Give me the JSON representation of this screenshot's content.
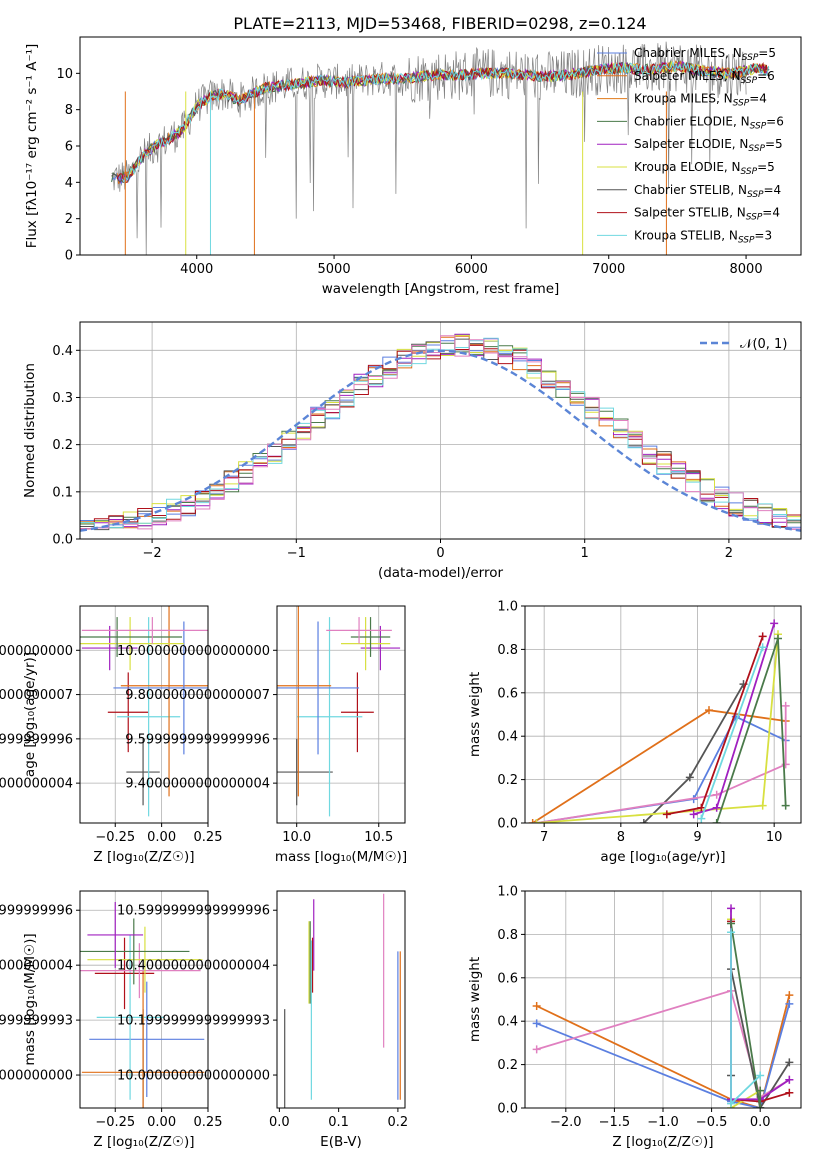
{
  "title": "PLATE=2113, MJD=53468, FIBERID=0298, z=0.124",
  "colors": {
    "Chabrier MILES": "#5b7fe0",
    "Salpeter MILES": "#e0701a",
    "Kroupa MILES": "#e07a1a",
    "Chabrier ELODIE": "#4a7a4a",
    "Salpeter ELODIE": "#a020c0",
    "Kroupa ELODIE": "#d8e040",
    "Chabrier STELIB": "#555555",
    "Salpeter STELIB": "#b0101a",
    "Kroupa STELIB": "#70d8e0",
    "pink": "#e080c0",
    "normal": "#5b85d6"
  },
  "chart_data": [
    {
      "id": "spectrum",
      "type": "line",
      "xlabel": "wavelength [Angstrom, rest frame]",
      "ylabel": "Flux [fλ10⁻¹⁷ erg cm⁻² s⁻¹ A⁻¹]",
      "xlim": [
        3150,
        8400
      ],
      "ylim": [
        0,
        12
      ],
      "xticks": [
        4000,
        5000,
        6000,
        7000,
        8000
      ],
      "yticks": [
        0,
        2,
        4,
        6,
        8,
        10
      ],
      "grid": false,
      "legend_position": "top-right",
      "legend": [
        {
          "label": "Chabrier MILES, N_SSP=5",
          "color": "#5b7fe0"
        },
        {
          "label": "Salpeter MILES, N_SSP=6",
          "color": "#e0701a"
        },
        {
          "label": "Kroupa MILES, N_SSP=4",
          "color": "#e07a1a"
        },
        {
          "label": "Chabrier ELODIE, N_SSP=6",
          "color": "#4a7a4a"
        },
        {
          "label": "Salpeter ELODIE, N_SSP=5",
          "color": "#a020c0"
        },
        {
          "label": "Kroupa ELODIE, N_SSP=5",
          "color": "#d8e040"
        },
        {
          "label": "Chabrier STELIB, N_SSP=4",
          "color": "#555555"
        },
        {
          "label": "Salpeter STELIB, N_SSP=4",
          "color": "#b0101a"
        },
        {
          "label": "Kroupa STELIB, N_SSP=3",
          "color": "#70d8e0"
        }
      ],
      "continuum": {
        "x": [
          3380,
          3500,
          3600,
          3700,
          3800,
          3900,
          4000,
          4100,
          4200,
          4300,
          4500,
          4700,
          4900,
          5100,
          5300,
          5500,
          5700,
          5900,
          6100,
          6300,
          6500,
          6700,
          6900,
          7100,
          7300,
          7500,
          7700,
          7900,
          8100,
          8170
        ],
        "y": [
          4.2,
          4.3,
          5.4,
          6.0,
          6.4,
          6.9,
          8.2,
          8.7,
          8.9,
          8.5,
          9.2,
          9.4,
          9.6,
          9.5,
          9.7,
          9.7,
          9.9,
          9.9,
          10.0,
          10.0,
          9.8,
          9.9,
          10.2,
          10.3,
          10.2,
          10.4,
          10.1,
          10.0,
          10.3,
          10.1
        ]
      }
    },
    {
      "id": "residuals",
      "type": "area",
      "xlabel": "(data-model)/error",
      "ylabel": "Normed distribution",
      "xlim": [
        -2.5,
        2.5
      ],
      "ylim": [
        0,
        0.46
      ],
      "xticks": [
        -2,
        -1,
        0,
        1,
        2
      ],
      "yticks": [
        0.0,
        0.1,
        0.2,
        0.3,
        0.4
      ],
      "grid": true,
      "legend_position": "top-right",
      "legend": [
        {
          "label": "𝒩(0, 1)",
          "color": "#5b85d6",
          "style": "dashed"
        }
      ],
      "bin_width": 0.1
    },
    {
      "id": "age_vs_Z",
      "type": "scatter",
      "xlabel": "Z [log₁₀(Z/Z☉)]",
      "ylabel": "age  [log₁₀(age/yr)]",
      "xlim": [
        -0.44,
        0.25
      ],
      "ylim": [
        9.22,
        10.2
      ],
      "xticks": [
        -0.25,
        0.0,
        0.25
      ],
      "yticks": [
        9.4,
        9.6,
        9.8,
        10.0
      ],
      "grid": true,
      "points": [
        {
          "color": "#555555",
          "x": -0.1,
          "xerr": 0.09,
          "y": 9.45,
          "yerr": 0.15
        },
        {
          "color": "#b0101a",
          "x": -0.18,
          "xerr": 0.11,
          "y": 9.72,
          "yerr": 0.18
        },
        {
          "color": "#70d8e0",
          "x": -0.07,
          "xerr": 0.17,
          "y": 9.7,
          "yerr": 0.45
        },
        {
          "color": "#e0701a",
          "x": 0.04,
          "xerr": 0.26,
          "y": 9.84,
          "yerr": 0.5
        },
        {
          "color": "#5b7fe0",
          "x": 0.12,
          "xerr": 0.38,
          "y": 9.83,
          "yerr": 0.3
        },
        {
          "color": "#a020c0",
          "x": -0.28,
          "xerr": 0.15,
          "y": 10.01,
          "yerr": 0.1
        },
        {
          "color": "#d8e040",
          "x": -0.17,
          "xerr": 0.29,
          "y": 10.03,
          "yerr": 0.12
        },
        {
          "color": "#4a7a4a",
          "x": -0.24,
          "xerr": 0.35,
          "y": 10.06,
          "yerr": 0.09
        },
        {
          "color": "#e080c0",
          "x": -0.05,
          "xerr": 0.38,
          "y": 10.09,
          "yerr": 0.06
        }
      ]
    },
    {
      "id": "age_vs_mass",
      "type": "scatter",
      "xlabel": "mass [log₁₀(M/M☉)]",
      "ylabel": "",
      "xlim": [
        9.88,
        10.66
      ],
      "ylim": [
        9.22,
        10.2
      ],
      "xticks": [
        10.0,
        10.5
      ],
      "yticks": [
        9.4,
        9.6,
        9.8,
        10.0
      ],
      "grid": true,
      "points": [
        {
          "color": "#555555",
          "x": 10.0,
          "xerr": 0.22,
          "y": 9.45,
          "yerr": 0.15
        },
        {
          "color": "#b0101a",
          "x": 10.37,
          "xerr": 0.1,
          "y": 9.72,
          "yerr": 0.18
        },
        {
          "color": "#70d8e0",
          "x": 10.2,
          "xerr": 0.2,
          "y": 9.7,
          "yerr": 0.45
        },
        {
          "color": "#e0701a",
          "x": 10.01,
          "xerr": 0.2,
          "y": 9.84,
          "yerr": 0.5
        },
        {
          "color": "#5b7fe0",
          "x": 10.13,
          "xerr": 0.25,
          "y": 9.83,
          "yerr": 0.3
        },
        {
          "color": "#a020c0",
          "x": 10.51,
          "xerr": 0.12,
          "y": 10.01,
          "yerr": 0.1
        },
        {
          "color": "#d8e040",
          "x": 10.42,
          "xerr": 0.15,
          "y": 10.03,
          "yerr": 0.12
        },
        {
          "color": "#4a7a4a",
          "x": 10.45,
          "xerr": 0.12,
          "y": 10.06,
          "yerr": 0.09
        },
        {
          "color": "#e080c0",
          "x": 10.38,
          "xerr": 0.2,
          "y": 10.09,
          "yerr": 0.06
        }
      ]
    },
    {
      "id": "weight_vs_age",
      "type": "line",
      "xlabel": "age  [log₁₀(age/yr)]",
      "ylabel": "mass weight",
      "xlim": [
        6.75,
        10.35
      ],
      "ylim": [
        0,
        1
      ],
      "xticks": [
        7,
        8,
        9,
        10
      ],
      "yticks": [
        0.0,
        0.2,
        0.4,
        0.6,
        0.8,
        1.0
      ],
      "grid": true,
      "series": [
        {
          "color": "#e0701a",
          "x": [
            6.85,
            9.15,
            10.15
          ],
          "y": [
            0.0,
            0.52,
            0.47
          ]
        },
        {
          "color": "#5b7fe0",
          "x": [
            6.9,
            8.95,
            9.5,
            10.15
          ],
          "y": [
            0.0,
            0.11,
            0.49,
            0.38
          ]
        },
        {
          "color": "#555555",
          "x": [
            8.3,
            8.9,
            9.6
          ],
          "y": [
            0.0,
            0.21,
            0.64
          ]
        },
        {
          "color": "#e080c0",
          "x": [
            6.9,
            9.25,
            10.15,
            10.15
          ],
          "y": [
            0.0,
            0.13,
            0.27,
            0.54
          ]
        },
        {
          "color": "#d8e040",
          "x": [
            6.9,
            9.85,
            10.05
          ],
          "y": [
            0.0,
            0.08,
            0.87
          ]
        },
        {
          "color": "#b0101a",
          "x": [
            8.6,
            9.05,
            9.85
          ],
          "y": [
            0.04,
            0.07,
            0.86
          ]
        },
        {
          "color": "#a020c0",
          "x": [
            8.95,
            9.25,
            10.0
          ],
          "y": [
            0.04,
            0.07,
            0.92
          ]
        },
        {
          "color": "#4a7a4a",
          "x": [
            9.25,
            10.05,
            10.15
          ],
          "y": [
            0.0,
            0.85,
            0.08
          ]
        },
        {
          "color": "#70d8e0",
          "x": [
            9.05,
            9.85
          ],
          "y": [
            0.02,
            0.81
          ]
        }
      ]
    },
    {
      "id": "mass_vs_Z",
      "type": "scatter",
      "xlabel": "Z [log₁₀(Z/Z☉)]",
      "ylabel": "mass [log₁₀(M/M☉)]",
      "xlim": [
        -0.44,
        0.25
      ],
      "ylim": [
        9.88,
        10.67
      ],
      "xticks": [
        -0.25,
        0.0,
        0.25
      ],
      "yticks": [
        10.0,
        10.2,
        10.4,
        10.6
      ],
      "grid": true,
      "points": [
        {
          "color": "#555555",
          "x": -0.1,
          "xerr": 0.09,
          "y": 10.01,
          "yerr": 0.23
        },
        {
          "color": "#5b7fe0",
          "x": -0.08,
          "xerr": 0.31,
          "y": 10.13,
          "yerr": 0.21
        },
        {
          "color": "#70d8e0",
          "x": -0.17,
          "xerr": 0.18,
          "y": 10.21,
          "yerr": 0.3
        },
        {
          "color": "#e0701a",
          "x": -0.1,
          "xerr": 0.33,
          "y": 10.01,
          "yerr": 0.37
        },
        {
          "color": "#b0101a",
          "x": -0.2,
          "xerr": 0.16,
          "y": 10.37,
          "yerr": 0.13
        },
        {
          "color": "#e080c0",
          "x": -0.12,
          "xerr": 0.33,
          "y": 10.38,
          "yerr": 0.1
        },
        {
          "color": "#d8e040",
          "x": -0.09,
          "xerr": 0.31,
          "y": 10.42,
          "yerr": 0.12
        },
        {
          "color": "#4a7a4a",
          "x": -0.15,
          "xerr": 0.3,
          "y": 10.45,
          "yerr": 0.12
        },
        {
          "color": "#a020c0",
          "x": -0.25,
          "xerr": 0.15,
          "y": 10.51,
          "yerr": 0.12
        }
      ]
    },
    {
      "id": "mass_vs_EBV",
      "type": "scatter",
      "xlabel": "E(B-V)",
      "ylabel": "",
      "xlim": [
        -0.004,
        0.212
      ],
      "ylim": [
        9.88,
        10.67
      ],
      "xticks": [
        0.0,
        0.1,
        0.2
      ],
      "yticks": [
        10.0,
        10.2,
        10.4,
        10.6
      ],
      "grid": false,
      "points": [
        {
          "color": "#555555",
          "x": 0.009,
          "y": 10.01,
          "yerr": 0.23
        },
        {
          "color": "#d8e040",
          "x": 0.05,
          "y": 10.41,
          "yerr": 0.15
        },
        {
          "color": "#4a7a4a",
          "x": 0.052,
          "y": 10.41,
          "yerr": 0.15
        },
        {
          "color": "#70d8e0",
          "x": 0.054,
          "y": 10.2,
          "yerr": 0.29
        },
        {
          "color": "#b0101a",
          "x": 0.056,
          "y": 10.4,
          "yerr": 0.1
        },
        {
          "color": "#a020c0",
          "x": 0.058,
          "y": 10.51,
          "yerr": 0.13
        },
        {
          "color": "#e080c0",
          "x": 0.176,
          "y": 10.38,
          "yerr": 0.28
        },
        {
          "color": "#5b7fe0",
          "x": 0.2,
          "y": 10.18,
          "yerr": 0.27
        },
        {
          "color": "#e0701a",
          "x": 0.204,
          "y": 10.18,
          "yerr": 0.27
        }
      ]
    },
    {
      "id": "weight_vs_Z",
      "type": "line",
      "xlabel": "Z [log₁₀(Z/Z☉)]",
      "ylabel": "mass weight",
      "xlim": [
        -2.42,
        0.42
      ],
      "ylim": [
        0,
        1
      ],
      "xticks": [
        -2.0,
        -1.5,
        -1.0,
        -0.5,
        0.0
      ],
      "yticks": [
        0.0,
        0.2,
        0.4,
        0.6,
        0.8,
        1.0
      ],
      "grid": true,
      "series": [
        {
          "color": "#e0701a",
          "x": [
            -2.3,
            -0.3,
            0.0,
            0.3
          ],
          "y": [
            0.47,
            0.04,
            0.0,
            0.52
          ]
        },
        {
          "color": "#5b7fe0",
          "x": [
            -2.3,
            -0.3,
            0.0,
            0.3
          ],
          "y": [
            0.39,
            0.03,
            0.0,
            0.48
          ]
        },
        {
          "color": "#e080c0",
          "x": [
            -2.3,
            -0.3,
            0.0,
            0.3
          ],
          "y": [
            0.27,
            0.54,
            0.05,
            0.13
          ]
        },
        {
          "color": "#555555",
          "x": [
            -0.3,
            -0.3,
            0.0,
            0.3
          ],
          "y": [
            0.15,
            0.64,
            0.0,
            0.21
          ]
        },
        {
          "color": "#d8e040",
          "x": [
            -0.3,
            -0.3,
            0.0
          ],
          "y": [
            0.87,
            0.0,
            0.08
          ]
        },
        {
          "color": "#b0101a",
          "x": [
            -0.3,
            -0.3,
            0.0,
            0.3
          ],
          "y": [
            0.86,
            0.04,
            0.03,
            0.07
          ]
        },
        {
          "color": "#a020c0",
          "x": [
            -0.3,
            -0.3,
            0.0,
            0.3
          ],
          "y": [
            0.92,
            0.04,
            0.04,
            0.13
          ]
        },
        {
          "color": "#4a7a4a",
          "x": [
            -0.3,
            0.0,
            0.0
          ],
          "y": [
            0.85,
            0.0,
            0.08
          ]
        },
        {
          "color": "#70d8e0",
          "x": [
            -0.3,
            -0.3,
            0.0
          ],
          "y": [
            0.81,
            0.02,
            0.15
          ]
        }
      ]
    }
  ]
}
